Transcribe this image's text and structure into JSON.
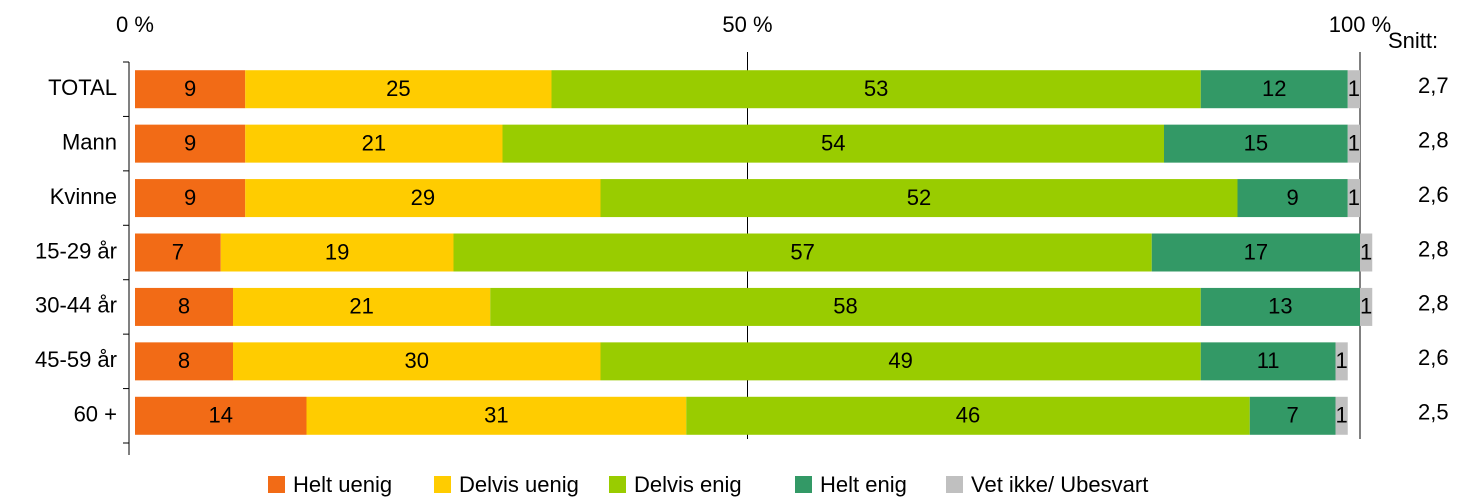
{
  "chart_data": {
    "type": "stacked_barh",
    "categories": [
      "TOTAL",
      "Mann",
      "Kvinne",
      "15-29 år",
      "30-44 år",
      "45-59 år",
      "60 +"
    ],
    "series": [
      {
        "name": "Helt uenig",
        "color": "#f26b16",
        "values": [
          9,
          9,
          9,
          7,
          8,
          8,
          14
        ]
      },
      {
        "name": "Delvis uenig",
        "color": "#ffcc00",
        "values": [
          25,
          21,
          29,
          19,
          21,
          30,
          31
        ]
      },
      {
        "name": "Delvis enig",
        "color": "#99cc00",
        "values": [
          53,
          54,
          52,
          57,
          58,
          49,
          46
        ]
      },
      {
        "name": "Helt enig",
        "color": "#339966",
        "values": [
          12,
          15,
          9,
          17,
          13,
          11,
          7
        ]
      },
      {
        "name": "Vet ikke/ Ubesvart",
        "color": "#c0c0c0",
        "values": [
          1,
          1,
          1,
          1,
          1,
          1,
          1
        ]
      }
    ],
    "xlim": [
      0,
      100
    ],
    "xticks": [
      {
        "value": 0,
        "label": "0 %"
      },
      {
        "value": 50,
        "label": "50 %"
      },
      {
        "value": 100,
        "label": "100 %"
      }
    ],
    "grid": true,
    "legend": "bottom",
    "snitt": {
      "label": "Snitt:",
      "values": [
        2.7,
        2.8,
        2.6,
        2.8,
        2.8,
        2.6,
        2.5
      ],
      "value_labels": [
        "2,7",
        "2,8",
        "2,6",
        "2,8",
        "2,8",
        "2,6",
        "2,5"
      ]
    }
  }
}
